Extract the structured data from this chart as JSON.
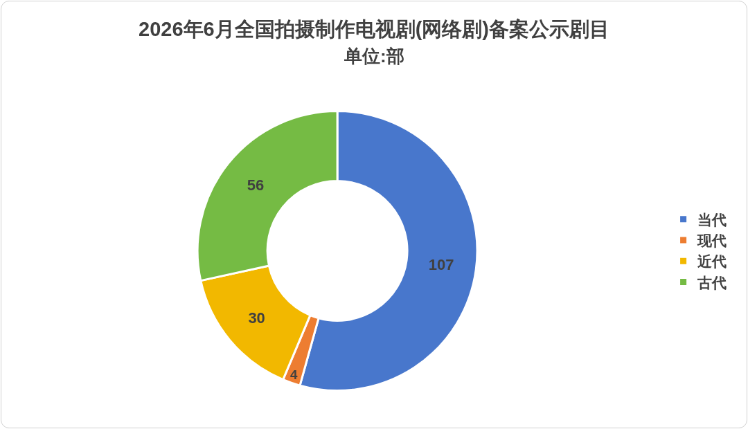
{
  "chart_data": {
    "type": "donut",
    "title": "2026年6月全国拍摄制作电视剧(网络剧)备案公示剧目",
    "subtitle": "单位:部",
    "categories": [
      "当代",
      "现代",
      "近代",
      "古代"
    ],
    "values": [
      107,
      4,
      30,
      56
    ],
    "colors": [
      "#4877cc",
      "#ed7d31",
      "#f2b800",
      "#75bb44"
    ],
    "data_labels": true,
    "legend": "right"
  }
}
